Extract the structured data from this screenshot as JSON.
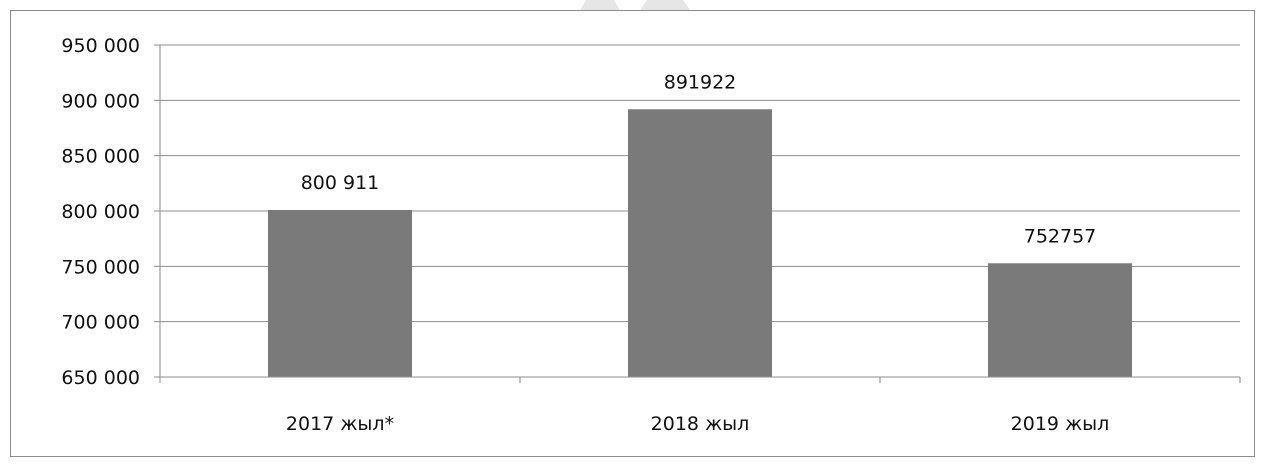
{
  "chart_data": {
    "type": "bar",
    "categories": [
      "2017 жыл*",
      "2018 жыл",
      "2019 жыл"
    ],
    "values": [
      800911,
      891922,
      752757
    ],
    "data_labels": [
      "800 911",
      "891922",
      "752757"
    ],
    "yticks": [
      650000,
      700000,
      750000,
      800000,
      850000,
      900000,
      950000
    ],
    "ytick_labels": [
      "650 000",
      "700 000",
      "750 000",
      "800 000",
      "850 000",
      "900 000",
      "950 000"
    ],
    "ylim": [
      650000,
      950000
    ],
    "title": "",
    "xlabel": "",
    "ylabel": "",
    "grid": "horizontal",
    "legend": "none",
    "bar_color": "#7a7a7a",
    "grid_color": "#8c8c8c"
  }
}
